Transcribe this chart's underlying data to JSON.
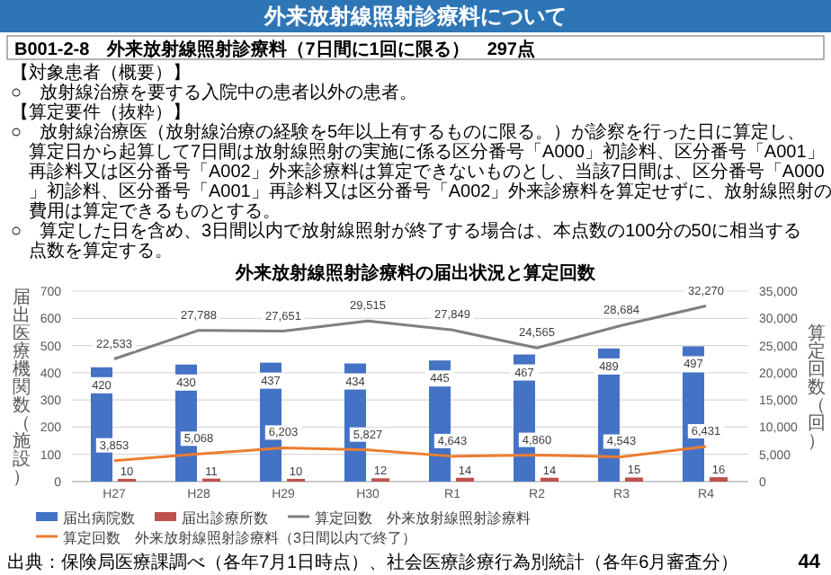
{
  "chart_data": {
    "type": "bar",
    "title": "外来放射線照射診療料について",
    "subtitle": "外来放射線照射診療料の届出状況と算定回数",
    "annotations": [
      "B001-2-8　外来放射線照射診療料（7日間に1回に限る）　297点",
      "【対象患者（概要）】",
      "○　放射線治療を要する入院中の患者以外の患者。",
      "【算定要件（抜粋）】",
      "○　放射線治療医（放射線治療の経験を5年以上有するものに限る。）が診察を行った日に算定し、算定日から起算して7日間は放射線照射の実施に係る区分番号「A000」初診料、区分番号「A001」再診料又は区分番号「A002」外来診療料は算定できないものとし、当該7日間は、区分番号「A000」初診料、区分番号「A001」再診料又は区分番号「A002」外来診療料を算定せずに、放射線照射の費用は算定できるものとする。",
      "○　算定した日を含め、3日間以内で放射線照射が終了する場合は、本点数の100分の50に相当する点数を算定する。",
      "出典：保険局医療課調べ（各年7月1日時点）、社会医療診療行為別統計（各年6月審査分）",
      "44"
    ],
    "categories": [
      "H27",
      "H28",
      "H29",
      "H30",
      "R1",
      "R2",
      "R3",
      "R4"
    ],
    "ylabel": "届出医療機関数（施設）",
    "y2label": "算定回数（回）",
    "ylim": [
      0,
      700
    ],
    "yticks": [
      0,
      100,
      200,
      300,
      400,
      500,
      600,
      700
    ],
    "y2lim": [
      0,
      35000
    ],
    "y2ticks": [
      0,
      {
        "value": 5000,
        "label": "5,000"
      },
      {
        "value": 10000,
        "label": "10,000"
      },
      {
        "value": 15000,
        "label": "15,000"
      },
      {
        "value": 20000,
        "label": "20,000"
      },
      {
        "value": 25000,
        "label": "25,000"
      },
      {
        "value": 30000,
        "label": "30,000"
      },
      {
        "value": 35000,
        "label": "35,000"
      }
    ],
    "grid": "y",
    "legend": "bottom",
    "series": [
      {
        "name": "届出病院数",
        "color": "#4472c4",
        "values": [
          420,
          430,
          437,
          434,
          445,
          467,
          489,
          497
        ],
        "value_labels": [
          "420",
          "430",
          "437",
          "434",
          "445",
          "467",
          "489",
          "497"
        ]
      },
      {
        "name": "届出診療所数",
        "color": "#c0504d",
        "values": [
          10,
          11,
          10,
          12,
          14,
          14,
          15,
          16
        ],
        "value_labels": [
          "10",
          "11",
          "10",
          "12",
          "14",
          "14",
          "15",
          "16"
        ]
      },
      {
        "name": "算定回数　外来放射線照射診療料",
        "type": "line",
        "axis": "y2",
        "color": "#7f7f7f",
        "values": [
          22533,
          27788,
          27651,
          29515,
          27849,
          24565,
          28684,
          32270
        ],
        "value_labels": [
          "22,533",
          "27,788",
          "27,651",
          "29,515",
          "27,849",
          "24,565",
          "28,684",
          "32,270"
        ]
      },
      {
        "name": "算定回数　外来放射線照射診療料（3日間以内で終了）",
        "type": "line",
        "axis": "y2",
        "color": "#ed7d31",
        "values": [
          3853,
          5068,
          6203,
          5827,
          4643,
          4860,
          4543,
          6431
        ],
        "value_labels": [
          "3,853",
          "5,068",
          "6,203",
          "5,827",
          "4,643",
          "4,860",
          "4,543",
          "6,431"
        ]
      }
    ]
  }
}
